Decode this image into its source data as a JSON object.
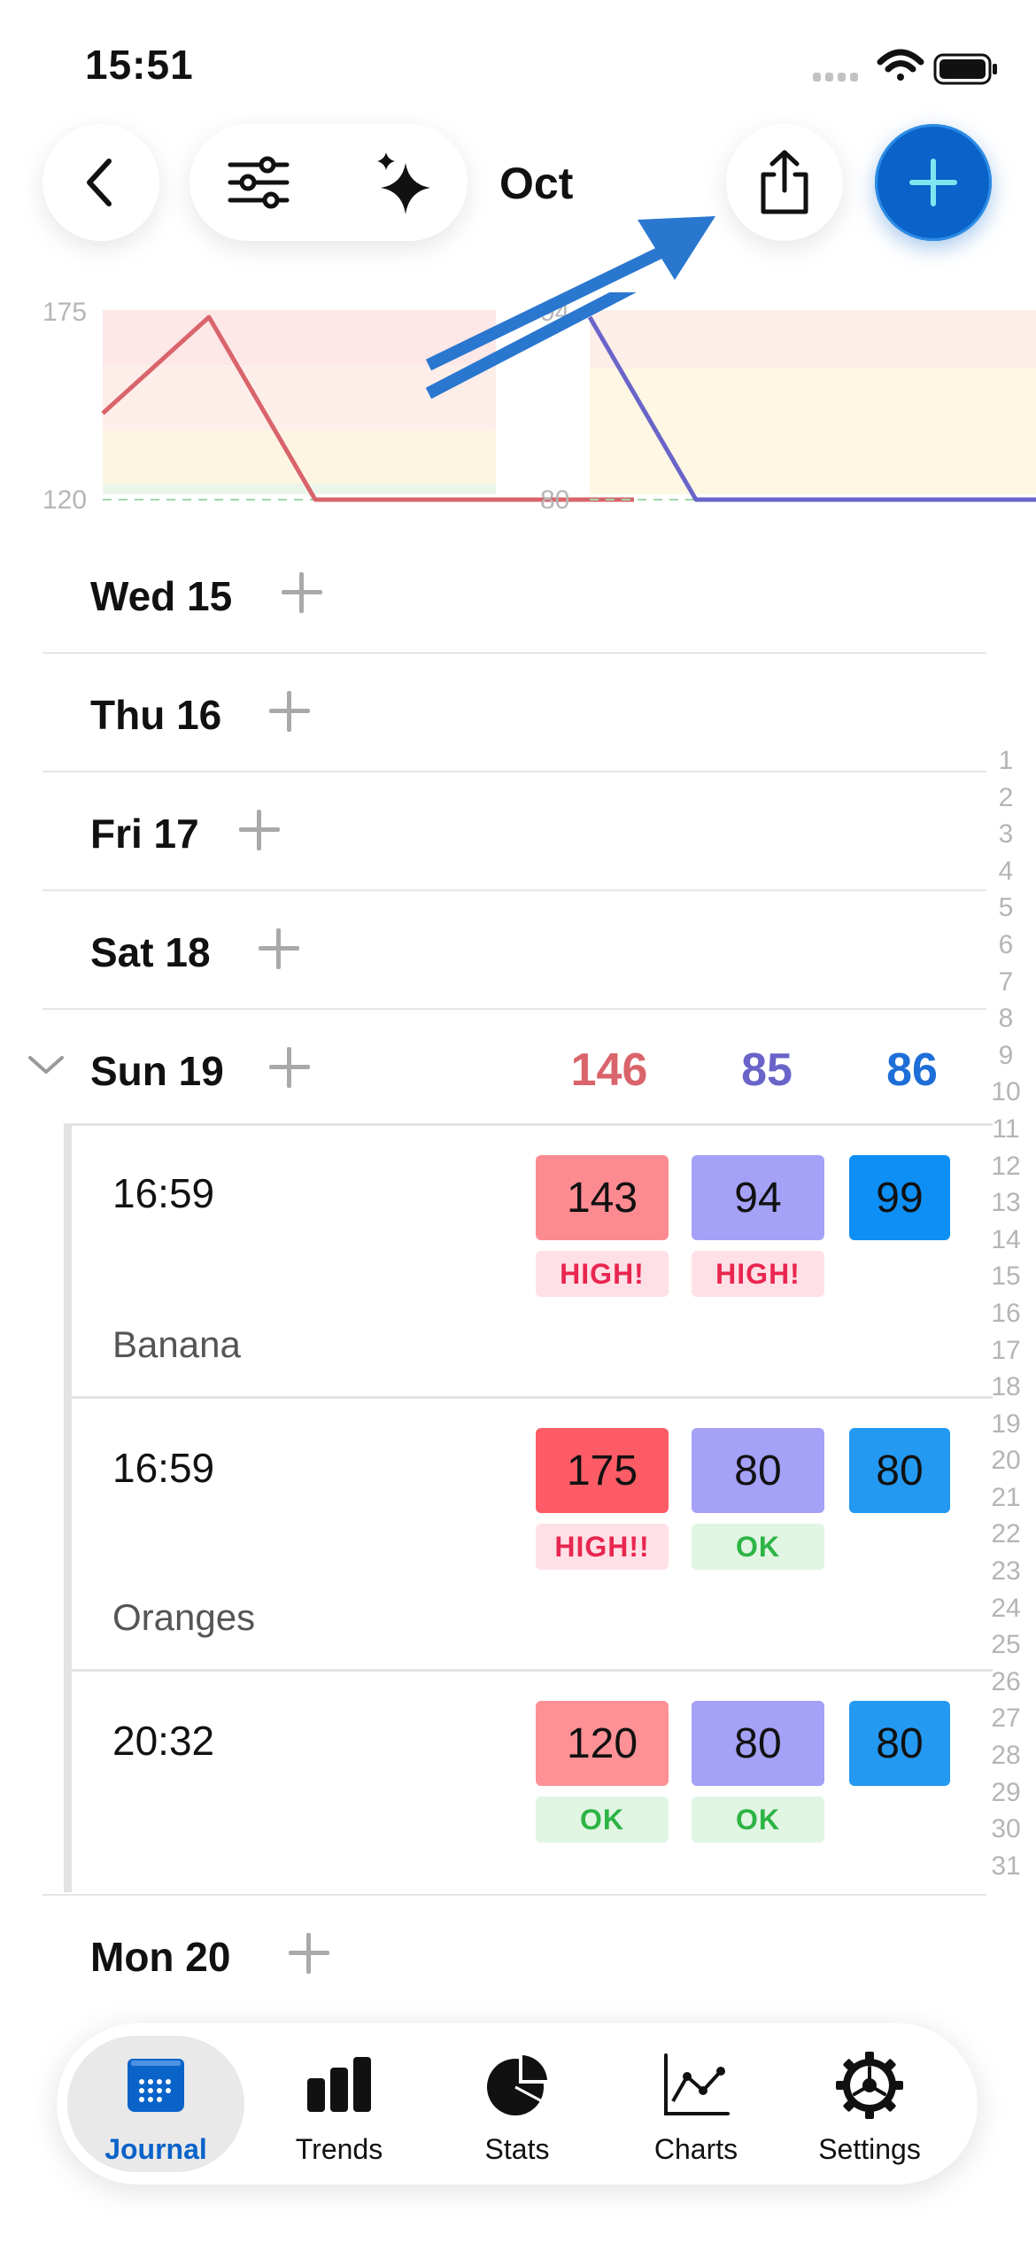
{
  "status": {
    "time": "15:51"
  },
  "header": {
    "month": "Oct"
  },
  "charts": {
    "left": {
      "y_max_label": "175",
      "y_min_label": "120",
      "color": "#d9646b"
    },
    "right": {
      "y_max_label": "94",
      "y_min_label": "80",
      "color": "#6a64c9"
    }
  },
  "chart_data": [
    {
      "type": "line",
      "ylim": [
        120,
        175
      ],
      "x": [
        15,
        16,
        17,
        18,
        19,
        20
      ],
      "series": [
        {
          "values": [
            146,
            175,
            120,
            120,
            120,
            120
          ]
        }
      ]
    },
    {
      "type": "line",
      "ylim": [
        80,
        94
      ],
      "x": [
        15,
        16,
        17,
        18,
        19,
        20
      ],
      "series": [
        {
          "values": [
            94,
            80,
            80,
            80,
            80,
            80
          ]
        }
      ]
    }
  ],
  "days": [
    {
      "label": "Wed 15"
    },
    {
      "label": "Thu 16"
    },
    {
      "label": "Fri 17"
    },
    {
      "label": "Sat 18"
    },
    {
      "label": "Sun 19"
    },
    {
      "label": "Mon 20"
    }
  ],
  "sun19_averages": {
    "sys": "146",
    "dia": "85",
    "pulse": "86"
  },
  "readings": [
    {
      "time": "16:59",
      "sys": "143",
      "dia": "94",
      "pulse": "99",
      "sys_tag": "HIGH!",
      "dia_tag": "HIGH!",
      "note": "Banana"
    },
    {
      "time": "16:59",
      "sys": "175",
      "dia": "80",
      "pulse": "80",
      "sys_tag": "HIGH!!",
      "dia_tag": "OK",
      "note": "Oranges"
    },
    {
      "time": "20:32",
      "sys": "120",
      "dia": "80",
      "pulse": "80",
      "sys_tag": "OK",
      "dia_tag": "OK",
      "note": ""
    }
  ],
  "index": [
    "1",
    "2",
    "3",
    "4",
    "5",
    "6",
    "7",
    "8",
    "9",
    "10",
    "11",
    "12",
    "13",
    "14",
    "15",
    "16",
    "17",
    "18",
    "19",
    "20",
    "21",
    "22",
    "23",
    "24",
    "25",
    "26",
    "27",
    "28",
    "29",
    "30",
    "31"
  ],
  "tabs": [
    {
      "label": "Journal",
      "icon": "calendar-icon"
    },
    {
      "label": "Trends",
      "icon": "bar-chart-icon"
    },
    {
      "label": "Stats",
      "icon": "pie-chart-icon"
    },
    {
      "label": "Charts",
      "icon": "line-chart-icon"
    },
    {
      "label": "Settings",
      "icon": "gear-icon"
    }
  ],
  "colors": {
    "accent": "#0a63c9",
    "sys": "#d9646b",
    "dia": "#6a64c9",
    "pulse": "#1e6ed8",
    "high_tag_bg": "#ffe0e6",
    "high_tag_text": "#e8264f",
    "ok_tag_bg": "#e1f5e3",
    "ok_tag_text": "#2db445"
  }
}
